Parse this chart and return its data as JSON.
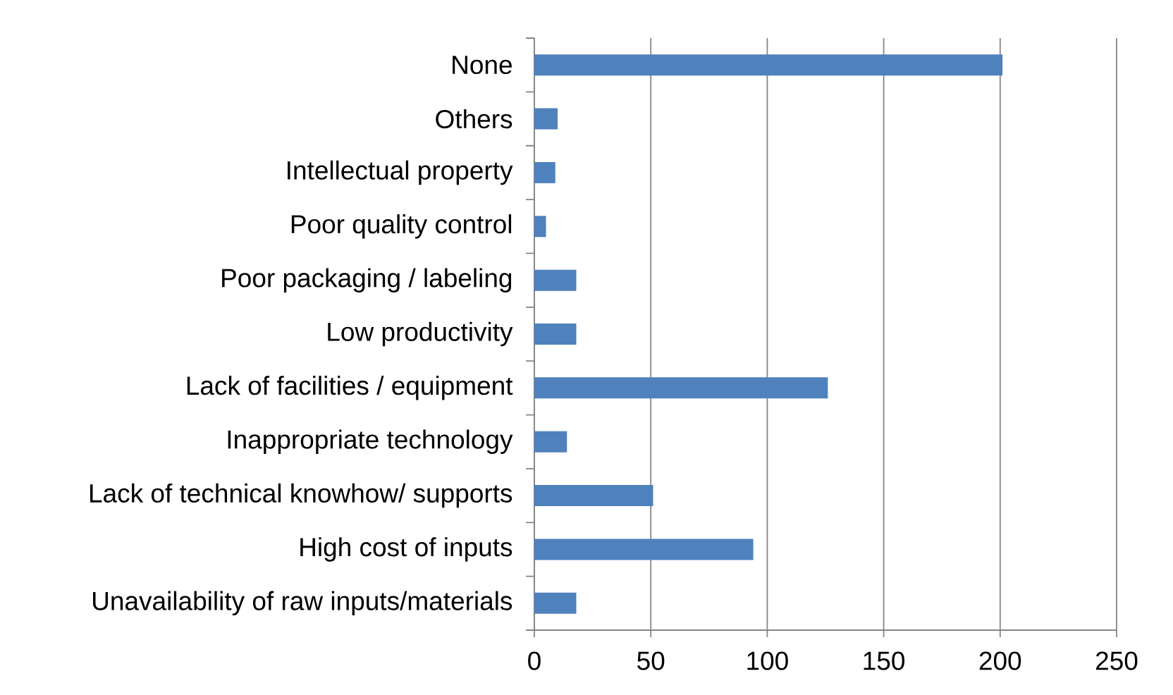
{
  "chart_data": {
    "type": "bar",
    "orientation": "horizontal",
    "categories": [
      "None",
      "Others",
      "Intellectual property",
      "Poor quality control",
      "Poor packaging / labeling",
      "Low productivity",
      "Lack of facilities / equipment",
      "Inappropriate technology",
      "Lack of technical knowhow/ supports",
      "High cost of inputs",
      "Unavailability of raw inputs/materials"
    ],
    "values": [
      201,
      10,
      9,
      5,
      18,
      18,
      126,
      14,
      51,
      94,
      18
    ],
    "color": "#4f81bd",
    "xlim": [
      0,
      250
    ],
    "xticks": [
      0,
      50,
      100,
      150,
      200,
      250
    ],
    "grid": "x"
  }
}
